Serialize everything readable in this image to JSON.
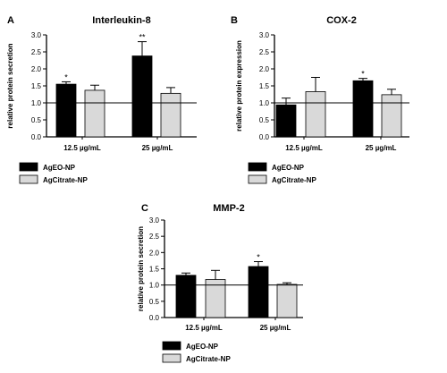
{
  "legend_labels": [
    "AgEO-NP",
    "AgCitrate-NP"
  ],
  "colors": {
    "AgEO-NP": "#000000",
    "AgCitrate-NP": "#d9d9d9",
    "axis": "#000000"
  },
  "chart_data": [
    {
      "panel_label": "A",
      "type": "bar",
      "title": "Interleukin-8",
      "ylabel": "relative protein secretion",
      "xlabel": "",
      "categories": [
        "12.5 µg/mL",
        "25 µg/mL"
      ],
      "ylim": [
        0,
        3.0
      ],
      "yticks": [
        "0.0",
        "0.5",
        "1.0",
        "1.5",
        "2.0",
        "2.5",
        "3.0"
      ],
      "reference_line": 1.0,
      "legend_position": "bottom-left",
      "series": [
        {
          "name": "AgEO-NP",
          "values": [
            1.55,
            2.38
          ],
          "errors": [
            0.07,
            0.42
          ],
          "annotations": [
            "*",
            "**"
          ]
        },
        {
          "name": "AgCitrate-NP",
          "values": [
            1.37,
            1.28
          ],
          "errors": [
            0.15,
            0.17
          ],
          "annotations": [
            "",
            ""
          ]
        }
      ]
    },
    {
      "panel_label": "B",
      "type": "bar",
      "title": "COX-2",
      "ylabel": "relative protein expression",
      "xlabel": "",
      "categories": [
        "12.5 µg/mL",
        "25 µg/mL"
      ],
      "ylim": [
        0,
        3.0
      ],
      "yticks": [
        "0.0",
        "0.5",
        "1.0",
        "1.5",
        "2.0",
        "2.5",
        "3.0"
      ],
      "reference_line": 1.0,
      "legend_position": "bottom-left",
      "series": [
        {
          "name": "AgEO-NP",
          "values": [
            0.94,
            1.65
          ],
          "errors": [
            0.2,
            0.07
          ],
          "annotations": [
            "",
            "*"
          ]
        },
        {
          "name": "AgCitrate-NP",
          "values": [
            1.33,
            1.24
          ],
          "errors": [
            0.42,
            0.16
          ],
          "annotations": [
            "",
            ""
          ]
        }
      ]
    },
    {
      "panel_label": "C",
      "type": "bar",
      "title": "MMP-2",
      "ylabel": "relative protein secretion",
      "xlabel": "",
      "categories": [
        "12.5 µg/mL",
        "25 µg/mL"
      ],
      "ylim": [
        0,
        3.0
      ],
      "yticks": [
        "0.0",
        "0.5",
        "1.0",
        "1.5",
        "2.0",
        "2.5",
        "3.0"
      ],
      "reference_line": 1.0,
      "legend_position": "bottom-left",
      "series": [
        {
          "name": "AgEO-NP",
          "values": [
            1.3,
            1.57
          ],
          "errors": [
            0.07,
            0.15
          ],
          "annotations": [
            "",
            "*"
          ]
        },
        {
          "name": "AgCitrate-NP",
          "values": [
            1.17,
            1.02
          ],
          "errors": [
            0.28,
            0.05
          ],
          "annotations": [
            "",
            ""
          ]
        }
      ]
    }
  ]
}
